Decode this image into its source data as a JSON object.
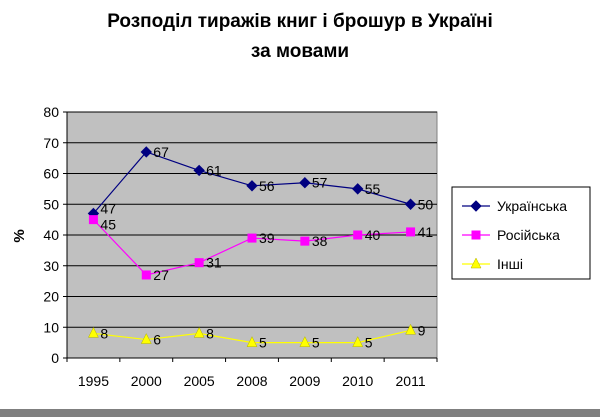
{
  "chart_data": {
    "type": "line",
    "title_lines": [
      "Розподіл тиражів книг і брошур в Україні",
      "за мовами"
    ],
    "ylabel": "%",
    "xlabel": "",
    "categories": [
      "1995",
      "2000",
      "2005",
      "2008",
      "2009",
      "2010",
      "2011"
    ],
    "ylim": [
      0,
      80
    ],
    "yticks": [
      0,
      10,
      20,
      30,
      40,
      50,
      60,
      70,
      80
    ],
    "grid": true,
    "legend_position": "right",
    "series": [
      {
        "name": "Українська",
        "values": [
          47,
          67,
          61,
          56,
          57,
          55,
          50
        ],
        "color": "#000080",
        "marker": "diamond"
      },
      {
        "name": "Російська",
        "values": [
          45,
          27,
          31,
          39,
          38,
          40,
          41
        ],
        "color": "#ff00ff",
        "marker": "square"
      },
      {
        "name": "Інші",
        "values": [
          8,
          6,
          8,
          5,
          5,
          5,
          9
        ],
        "color": "#ffff00",
        "marker": "triangle"
      }
    ],
    "plot_background": "#c0c0c0"
  }
}
